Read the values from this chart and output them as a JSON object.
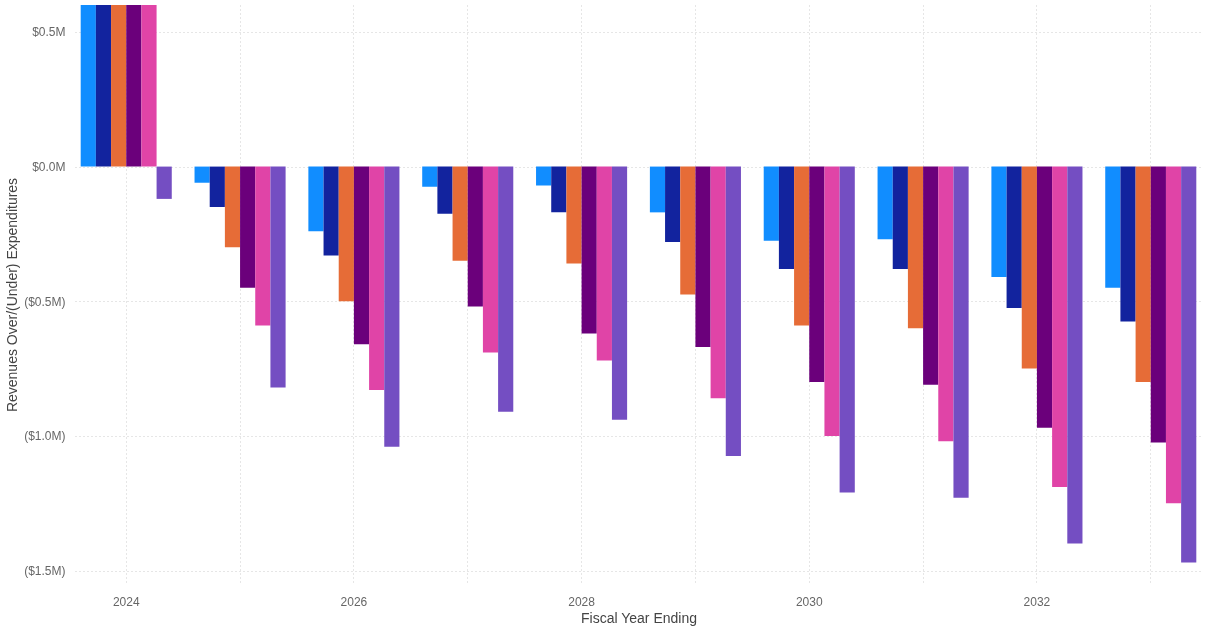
{
  "chart_data": {
    "type": "bar",
    "xlabel": "Fiscal Year Ending",
    "ylabel": "Revenues Over/(Under) Expenditures",
    "categories": [
      "2024",
      null,
      "2026",
      null,
      "2028",
      null,
      "2030",
      null,
      "2032",
      null
    ],
    "series": [
      {
        "color": "#118dff",
        "values": [
          0.6,
          -0.06,
          -0.24,
          -0.075,
          -0.07,
          -0.17,
          -0.275,
          -0.27,
          -0.41,
          -0.45
        ]
      },
      {
        "color": "#12239e",
        "values": [
          0.6,
          -0.15,
          -0.33,
          -0.175,
          -0.17,
          -0.28,
          -0.38,
          -0.38,
          -0.525,
          -0.575
        ]
      },
      {
        "color": "#e66c37",
        "values": [
          0.6,
          -0.3,
          -0.5,
          -0.35,
          -0.36,
          -0.475,
          -0.59,
          -0.6,
          -0.75,
          -0.8
        ]
      },
      {
        "color": "#6b007b",
        "values": [
          0.6,
          -0.45,
          -0.66,
          -0.52,
          -0.62,
          -0.67,
          -0.8,
          -0.81,
          -0.97,
          -1.025
        ]
      },
      {
        "color": "#e044a7",
        "values": [
          0.6,
          -0.59,
          -0.83,
          -0.69,
          -0.72,
          -0.86,
          -1.0,
          -1.02,
          -1.19,
          -1.25
        ]
      },
      {
        "color": "#744ec2",
        "values": [
          -0.12,
          -0.82,
          -1.04,
          -0.91,
          -0.94,
          -1.075,
          -1.21,
          -1.23,
          -1.4,
          -1.47
        ]
      }
    ],
    "ylim": [
      -1.55,
      0.6
    ],
    "yticks": [
      {
        "value": 0.5,
        "label": "$0.5M"
      },
      {
        "value": 0,
        "label": "$0.0M"
      },
      {
        "value": -0.5,
        "label": "($0.5M)"
      },
      {
        "value": -1.0,
        "label": "($1.0M)"
      },
      {
        "value": -1.5,
        "label": "($1.5M)"
      }
    ],
    "grid": true,
    "legend": false
  }
}
